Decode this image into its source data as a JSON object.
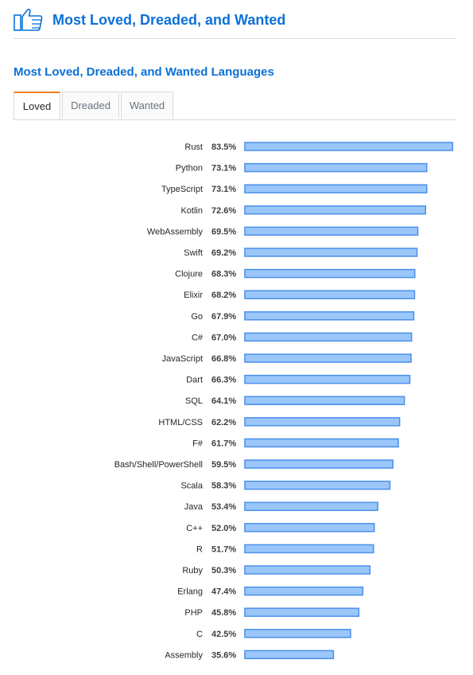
{
  "header": {
    "title": "Most Loved, Dreaded, and Wanted"
  },
  "tabs": [
    {
      "label": "Loved",
      "active": true
    },
    {
      "label": "Dreaded",
      "active": false
    },
    {
      "label": "Wanted",
      "active": false
    }
  ],
  "colors": {
    "accent": "#0c70d8",
    "tab_active": "#f48024",
    "bar_fill": "#9ac6fa",
    "bar_stroke": "#4a8fea"
  },
  "chart_data": {
    "type": "bar",
    "orientation": "horizontal",
    "title": "Most Loved, Dreaded, and Wanted Languages",
    "categories": [
      "Rust",
      "Python",
      "TypeScript",
      "Kotlin",
      "WebAssembly",
      "Swift",
      "Clojure",
      "Elixir",
      "Go",
      "C#",
      "JavaScript",
      "Dart",
      "SQL",
      "HTML/CSS",
      "F#",
      "Bash/Shell/PowerShell",
      "Scala",
      "Java",
      "C++",
      "R",
      "Ruby",
      "Erlang",
      "PHP",
      "C",
      "Assembly"
    ],
    "values": [
      83.5,
      73.1,
      73.1,
      72.6,
      69.5,
      69.2,
      68.3,
      68.2,
      67.9,
      67.0,
      66.8,
      66.3,
      64.1,
      62.2,
      61.7,
      59.5,
      58.3,
      53.4,
      52.0,
      51.7,
      50.3,
      47.4,
      45.8,
      42.5,
      35.6
    ],
    "value_labels": [
      "83.5%",
      "73.1%",
      "73.1%",
      "72.6%",
      "69.5%",
      "69.2%",
      "68.3%",
      "68.2%",
      "67.9%",
      "67.0%",
      "66.8%",
      "66.3%",
      "64.1%",
      "62.2%",
      "61.7%",
      "59.5%",
      "58.3%",
      "53.4%",
      "52.0%",
      "51.7%",
      "50.3%",
      "47.4%",
      "45.8%",
      "42.5%",
      "35.6%"
    ],
    "unit": "%",
    "grid": false,
    "legend": "none"
  }
}
